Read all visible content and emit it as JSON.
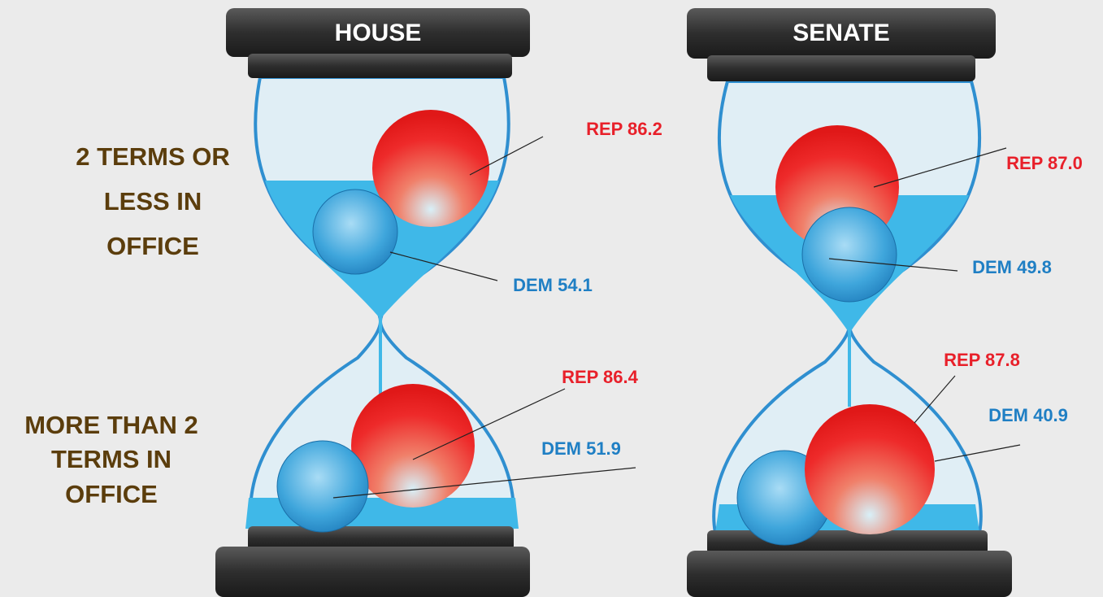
{
  "row_labels": [
    [
      "2 TERMS OR",
      "LESS IN",
      "OFFICE"
    ],
    [
      "MORE THAN 2",
      "TERMS IN",
      "OFFICE"
    ]
  ],
  "panels": [
    {
      "title": "HOUSE",
      "top": {
        "rep": "REP 86.2",
        "dem": "DEM 54.1"
      },
      "bottom": {
        "rep": "REP 86.4",
        "dem": "DEM 51.9"
      }
    },
    {
      "title": "SENATE",
      "top": {
        "rep": "REP 87.0",
        "dem": "DEM 49.8"
      },
      "bottom": {
        "rep": "REP 87.8",
        "dem": "DEM 40.9"
      }
    }
  ]
}
